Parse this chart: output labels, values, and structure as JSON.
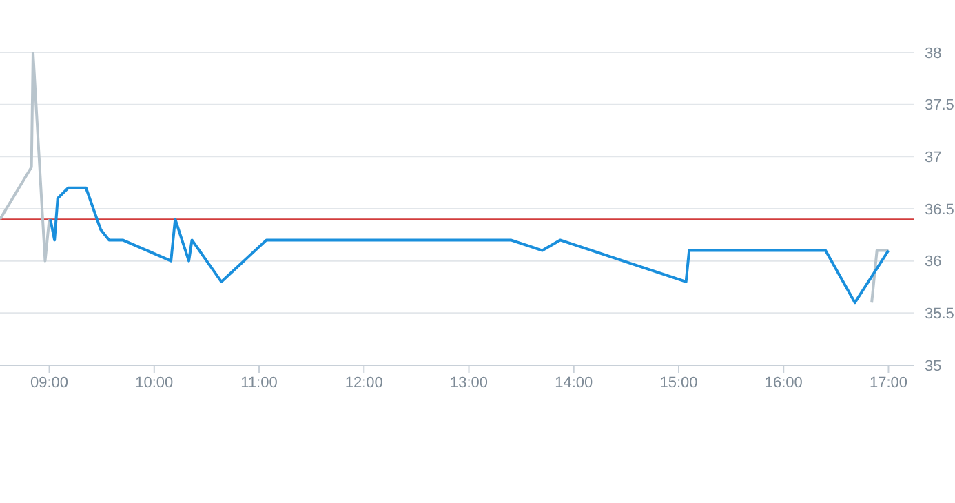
{
  "chart_data": {
    "type": "line",
    "xlim": [
      8.53,
      17.24
    ],
    "xticks": [
      {
        "value": 9,
        "label": "09:00"
      },
      {
        "value": 10,
        "label": "10:00"
      },
      {
        "value": 11,
        "label": "11:00"
      },
      {
        "value": 12,
        "label": "12:00"
      },
      {
        "value": 13,
        "label": "13:00"
      },
      {
        "value": 14,
        "label": "14:00"
      },
      {
        "value": 15,
        "label": "15:00"
      },
      {
        "value": 16,
        "label": "16:00"
      },
      {
        "value": 17,
        "label": "17:00"
      }
    ],
    "ylim": [
      35,
      38
    ],
    "yticks": [
      35,
      35.5,
      36,
      36.5,
      37,
      37.5,
      38
    ],
    "grid": "y",
    "marker": "none",
    "line_style": "solid",
    "series": [
      {
        "color": "#b8c4cc",
        "x": [
          8.53,
          8.83,
          8.845,
          8.96,
          9.0
        ],
        "values": [
          36.4,
          36.9,
          38,
          36.0,
          36.4
        ]
      },
      {
        "color": "#b8c4cc",
        "x": [
          16.84,
          16.89,
          17.0
        ],
        "values": [
          35.6,
          36.1,
          36.1
        ]
      },
      {
        "color": "#1a8fdc",
        "x": [
          9.01,
          9.05,
          9.08,
          9.18,
          9.35,
          9.49,
          9.57,
          9.7,
          10.16,
          10.2,
          10.33,
          10.36,
          10.64,
          11.07,
          13.4,
          13.7,
          13.87,
          15.07,
          15.1,
          16.4,
          16.68,
          17.0
        ],
        "values": [
          36.4,
          36.2,
          36.6,
          36.7,
          36.7,
          36.3,
          36.2,
          36.2,
          36.0,
          36.4,
          36.0,
          36.2,
          35.8,
          36.2,
          36.2,
          36.1,
          36.2,
          35.8,
          36.1,
          36.1,
          35.6,
          36.1
        ]
      }
    ],
    "ref_lines": [
      {
        "axis": "y",
        "value": 36.4,
        "color": "#d23c3c"
      }
    ]
  }
}
